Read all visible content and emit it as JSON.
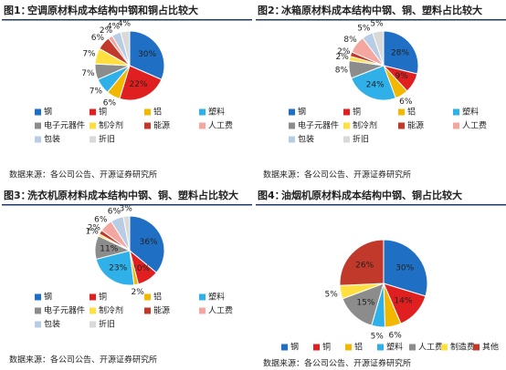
{
  "chart_data": [
    {
      "type": "pie",
      "figure": "图1：",
      "title": "空调原材料成本结构中钢和铜占比较大",
      "categories": [
        "钢",
        "铜",
        "铝",
        "塑料",
        "电子元器件",
        "制冷剂",
        "能源",
        "人工费",
        "包装",
        "折旧"
      ],
      "values": [
        30,
        22,
        6,
        7,
        7,
        7,
        6,
        2,
        4,
        4
      ],
      "value_labels": [
        "30%",
        "22%",
        "6%",
        "7%",
        "7%",
        "7%",
        "6%",
        "2%",
        "4%",
        "4%"
      ],
      "colors": [
        "#1f6fc5",
        "#e02020",
        "#f2b800",
        "#2fb0e8",
        "#8c8c8c",
        "#ffe040",
        "#c0392b",
        "#f4a6a0",
        "#b8cce4",
        "#d9d9d9"
      ],
      "source": "数据来源：各公司公告、开源证券研究所"
    },
    {
      "type": "pie",
      "figure": "图2：",
      "title": "冰箱原材料成本结构中钢、铜、塑料占比较大",
      "categories": [
        "钢",
        "铜",
        "铝",
        "塑料",
        "电子元器件",
        "制冷剂",
        "能源",
        "人工费",
        "包装",
        "折旧"
      ],
      "values": [
        28,
        9,
        6,
        24,
        8,
        2,
        2,
        8,
        5,
        5
      ],
      "value_labels": [
        "28%",
        "9%",
        "6%",
        "24%",
        "8%",
        "2%",
        "2%",
        "8%",
        "5%",
        "5%"
      ],
      "colors": [
        "#1f6fc5",
        "#e02020",
        "#f2b800",
        "#2fb0e8",
        "#8c8c8c",
        "#ffe040",
        "#c0392b",
        "#f4a6a0",
        "#b8cce4",
        "#d9d9d9"
      ],
      "source": "数据来源：各公司公告、开源证券研究所"
    },
    {
      "type": "pie",
      "figure": "图3：",
      "title": "洗衣机原材料成本结构中钢、铜、塑料占比较大",
      "categories": [
        "钢",
        "铜",
        "铝",
        "塑料",
        "电子元器件",
        "制冷剂",
        "能源",
        "人工费",
        "包装",
        "折旧"
      ],
      "values": [
        36,
        10,
        2,
        23,
        11,
        1,
        2,
        6,
        6,
        3
      ],
      "value_labels": [
        "36%",
        "10%",
        "2%",
        "23%",
        "11%",
        "1%",
        "2%",
        "6%",
        "6%",
        "3%"
      ],
      "colors": [
        "#1f6fc5",
        "#e02020",
        "#f2b800",
        "#2fb0e8",
        "#8c8c8c",
        "#ffe040",
        "#c0392b",
        "#f4a6a0",
        "#b8cce4",
        "#d9d9d9"
      ],
      "source": "数据来源：各公司公告、开源证券研究所"
    },
    {
      "type": "pie",
      "figure": "图4：",
      "title": "油烟机原材料成本结构中钢、铜占比较大",
      "categories": [
        "钢",
        "铜",
        "铝",
        "塑料",
        "人工费",
        "制造费",
        "其他"
      ],
      "values": [
        30,
        14,
        6,
        5,
        15,
        5,
        26
      ],
      "value_labels": [
        "30%",
        "14%",
        "6%",
        "5%",
        "15%",
        "5%",
        "26%"
      ],
      "colors": [
        "#1f6fc5",
        "#e02020",
        "#f2b800",
        "#2fb0e8",
        "#8c8c8c",
        "#ffe040",
        "#c0392b"
      ],
      "source": "数据来源：各公司公告、开源证券研究所"
    }
  ]
}
